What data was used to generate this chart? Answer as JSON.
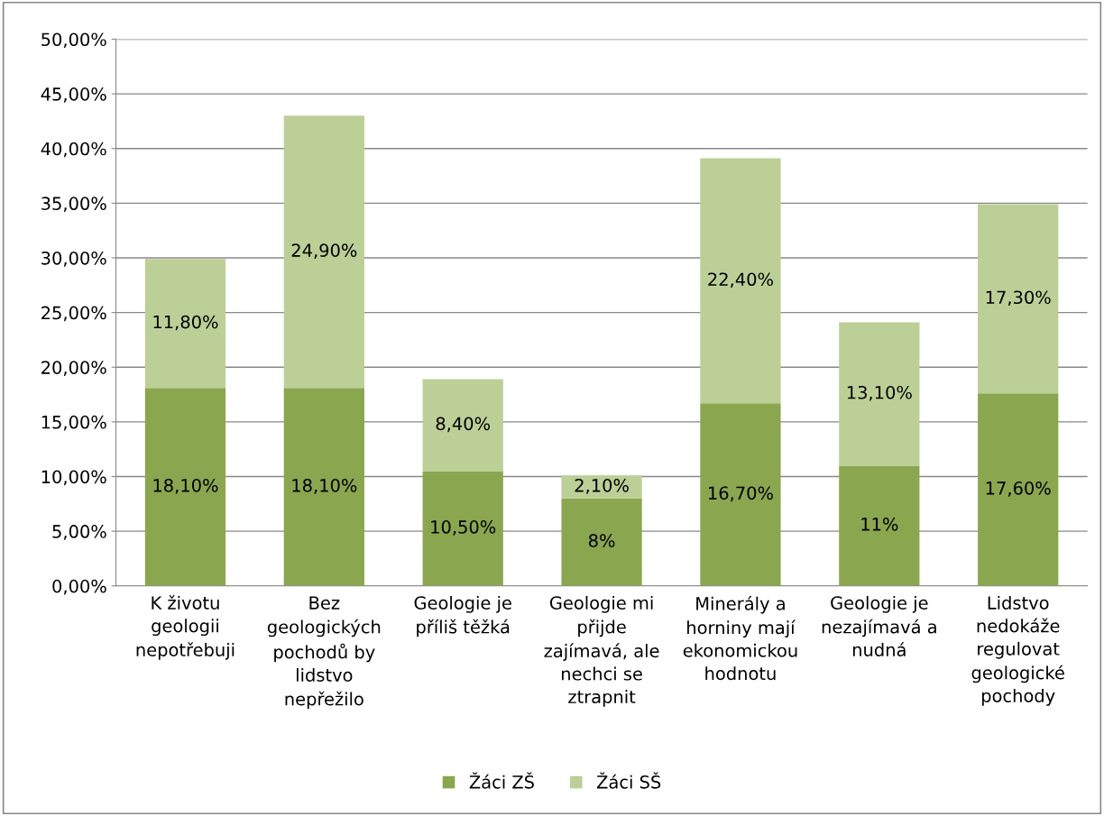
{
  "chart_data": {
    "type": "bar",
    "stacked": true,
    "categories": [
      "K životu\ngeologii\nnepotřebuji",
      "Bez\ngeologických\npochodů by\nlidstvo\nnepřežilo",
      "Geologie je\npříliš těžká",
      "Geologie mi\npřijde\nzajímavá, ale\nnechci se\nztrapnit",
      "Minerály a\nhorniny mají\nekonomickou\nhodnotu",
      "Geologie je\nnezajímavá a\nnudná",
      "Lidstvo\nnedokáže\nregulovat\ngeologické\npochody"
    ],
    "series": [
      {
        "name": "Žáci ZŠ",
        "color": "#8aa64f",
        "values": [
          18.1,
          18.1,
          10.5,
          8,
          16.7,
          11,
          17.6
        ],
        "value_labels": [
          "18,10%",
          "18,10%",
          "10,50%",
          "8%",
          "16,70%",
          "11%",
          "17,60%"
        ]
      },
      {
        "name": "Žáci SŠ",
        "color": "#bccf97",
        "values": [
          11.8,
          24.9,
          8.4,
          2.1,
          22.4,
          13.1,
          17.3
        ],
        "value_labels": [
          "11,80%",
          "24,90%",
          "8,40%",
          "2,10%",
          "22,40%",
          "13,10%",
          "17,30%"
        ]
      }
    ],
    "ylim": [
      0,
      50
    ],
    "yticks": [
      {
        "value": 0,
        "label": "0,00%"
      },
      {
        "value": 5,
        "label": "5,00%"
      },
      {
        "value": 10,
        "label": "10,00%"
      },
      {
        "value": 15,
        "label": "15,00%"
      },
      {
        "value": 20,
        "label": "20,00%"
      },
      {
        "value": 25,
        "label": "25,00%"
      },
      {
        "value": 30,
        "label": "30,00%"
      },
      {
        "value": 35,
        "label": "35,00%"
      },
      {
        "value": 40,
        "label": "40,00%"
      },
      {
        "value": 45,
        "label": "45,00%"
      },
      {
        "value": 50,
        "label": "50,00%"
      }
    ],
    "grid": "y",
    "legend": "bottom"
  }
}
